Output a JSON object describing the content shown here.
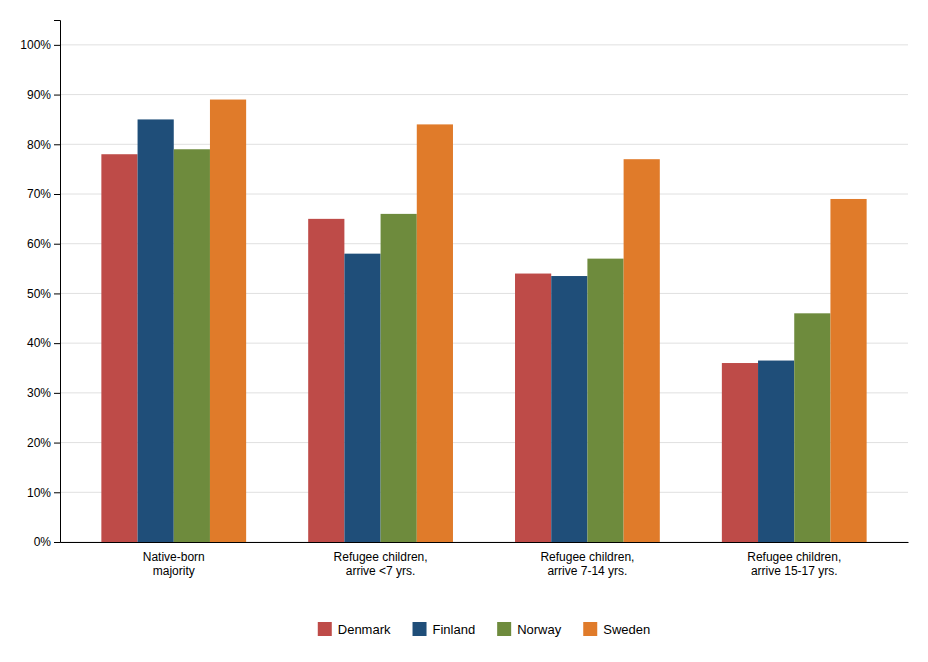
{
  "chart_data": {
    "type": "bar",
    "categories": [
      "Native-born\nmajority",
      "Refugee children,\narrive <7 yrs.",
      "Refugee children,\narrive 7-14 yrs.",
      "Refugee children,\narrive 15-17 yrs."
    ],
    "series": [
      {
        "name": "Denmark",
        "color": "#BE4B48",
        "values": [
          0.78,
          0.65,
          0.54,
          0.36
        ]
      },
      {
        "name": "Finland",
        "color": "#1F4E79",
        "values": [
          0.85,
          0.58,
          0.535,
          0.365
        ]
      },
      {
        "name": "Norway",
        "color": "#6E8B3D",
        "values": [
          0.79,
          0.66,
          0.57,
          0.46
        ]
      },
      {
        "name": "Sweden",
        "color": "#E07B2A",
        "values": [
          0.89,
          0.84,
          0.77,
          0.69
        ]
      }
    ],
    "ylim": [
      0,
      1.05
    ],
    "yticks": [
      {
        "value": 0,
        "label": "0%"
      },
      {
        "value": 0.1,
        "label": "10%"
      },
      {
        "value": 0.2,
        "label": "20%"
      },
      {
        "value": 0.3,
        "label": "30%"
      },
      {
        "value": 0.4,
        "label": "40%"
      },
      {
        "value": 0.5,
        "label": "50%"
      },
      {
        "value": 0.6,
        "label": "60%"
      },
      {
        "value": 0.7,
        "label": "70%"
      },
      {
        "value": 0.8,
        "label": "80%"
      },
      {
        "value": 0.9,
        "label": "90%"
      },
      {
        "value": 1.0,
        "label": "100%"
      }
    ],
    "grid": true,
    "legend": "bottom"
  }
}
